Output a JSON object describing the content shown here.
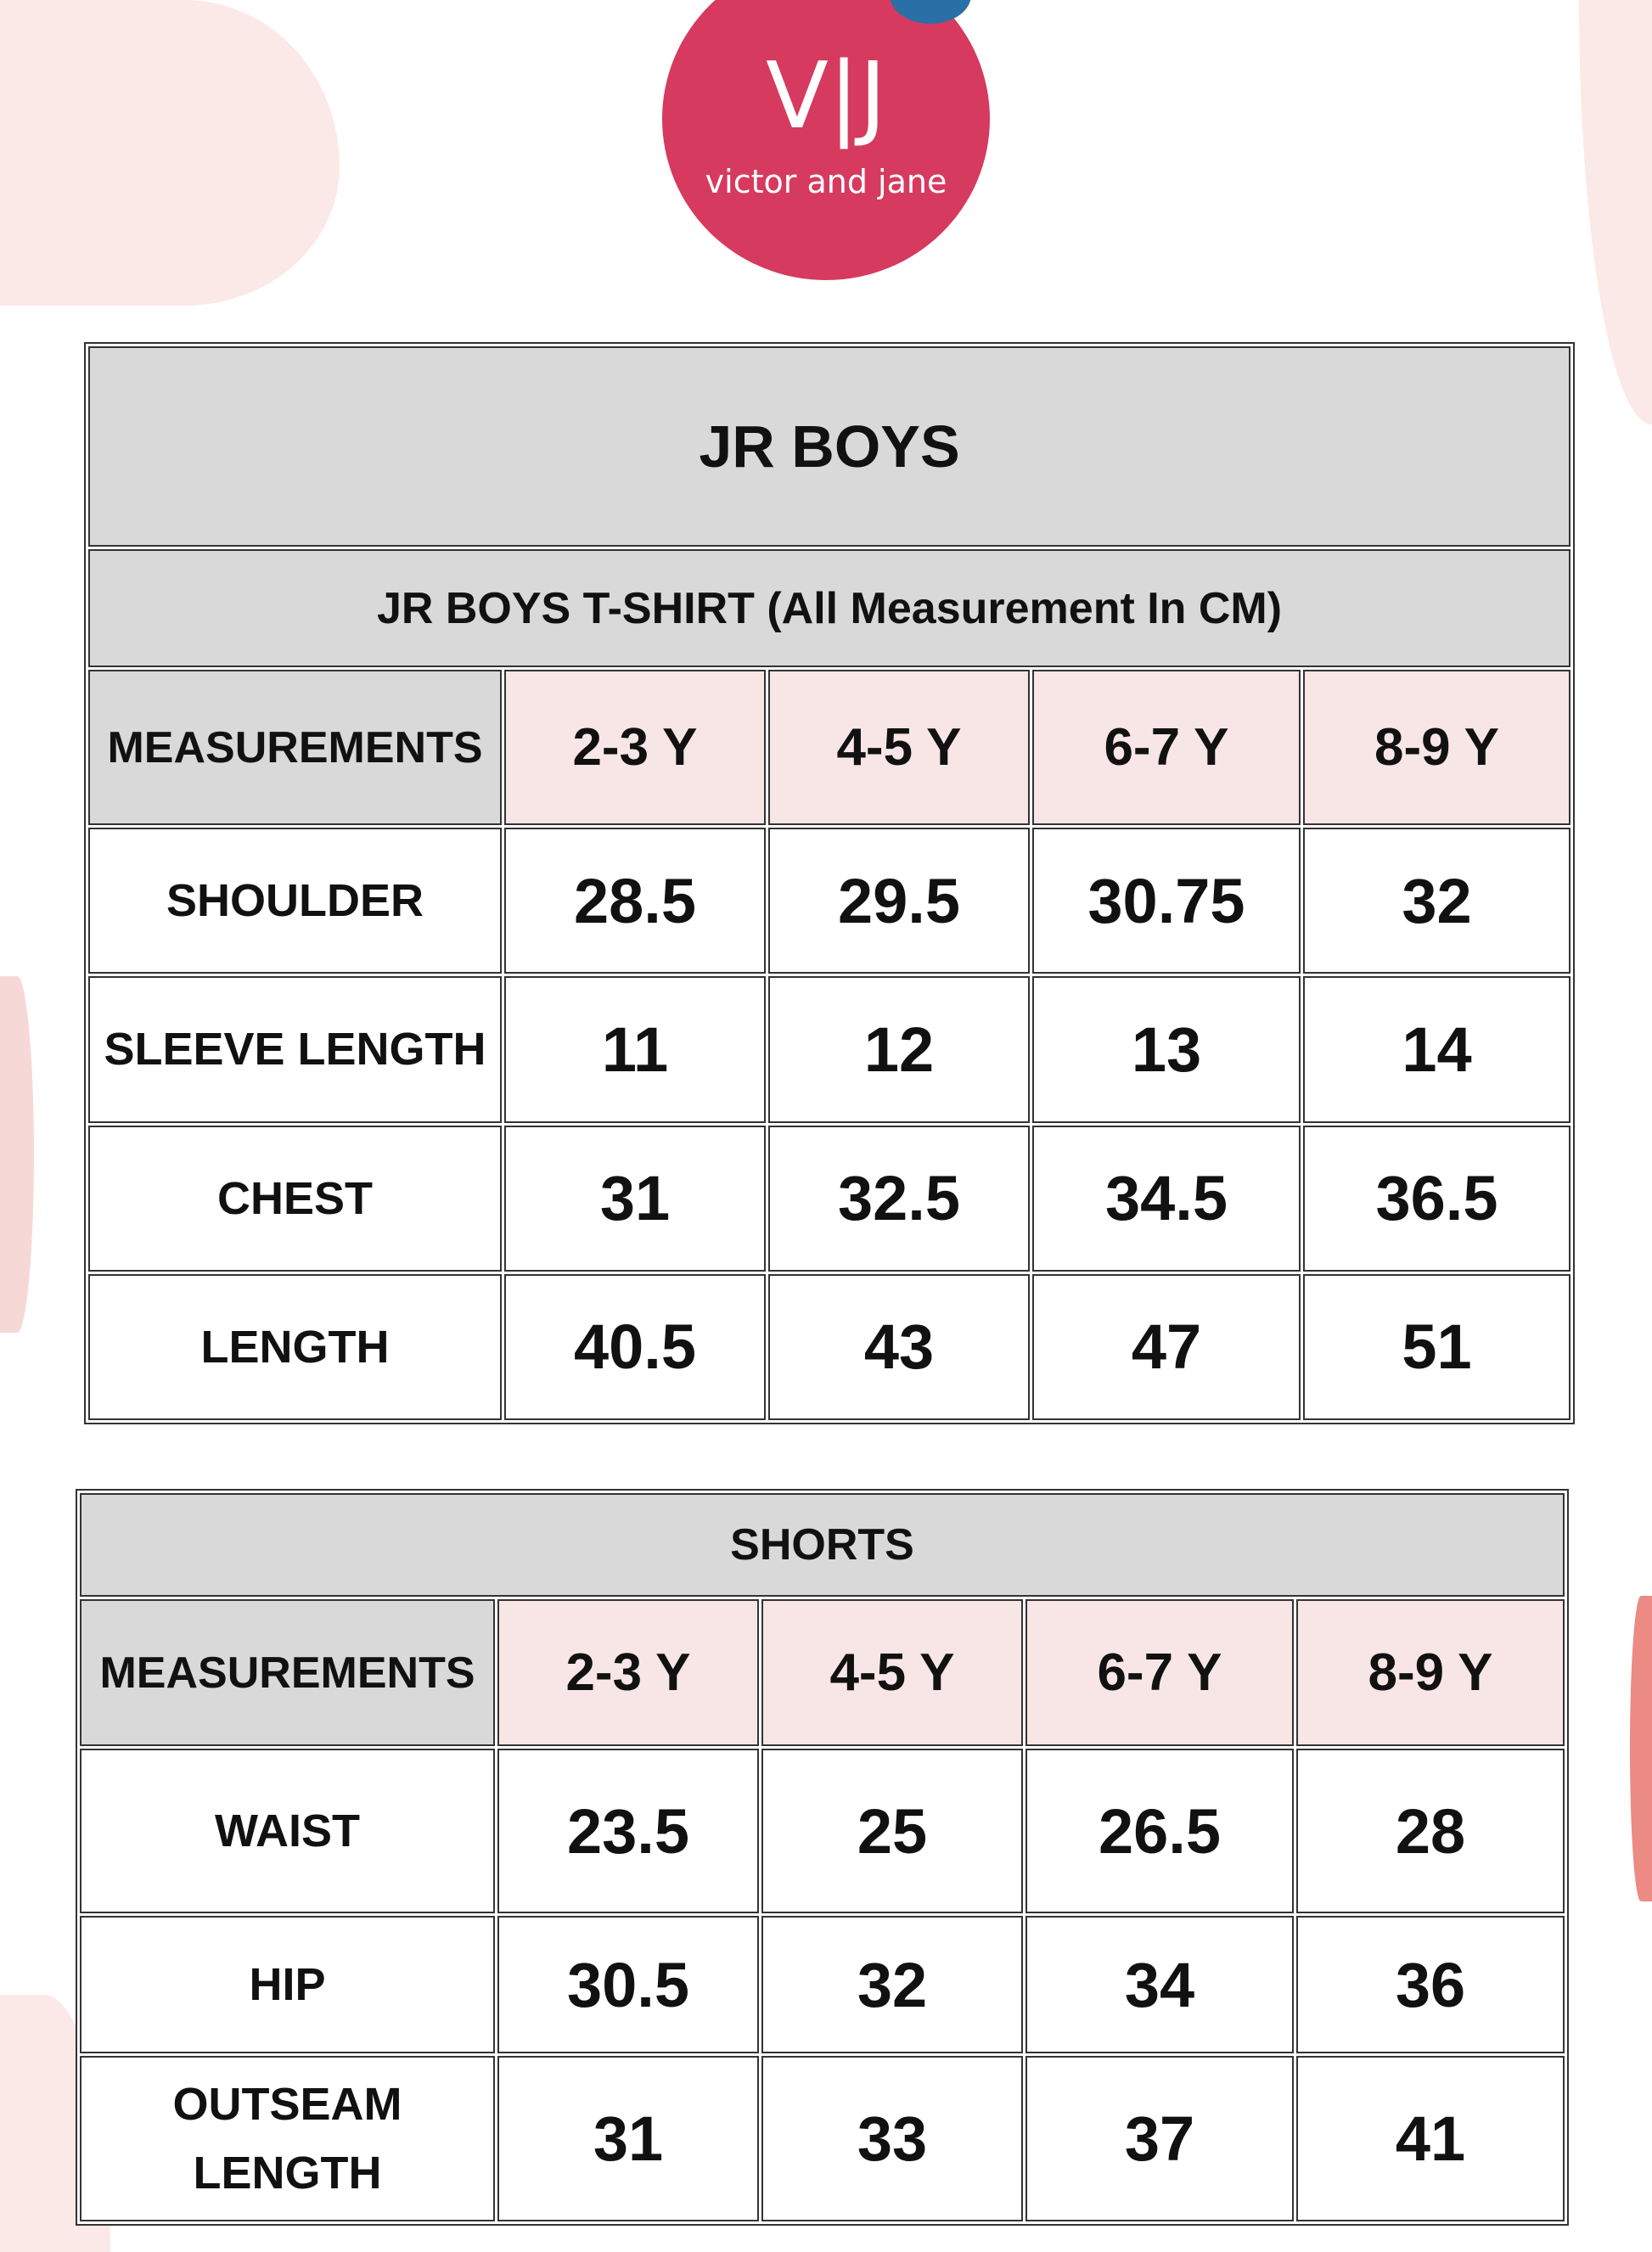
{
  "logo": {
    "mark": "V|J",
    "text": "victor and jane",
    "color": "#d63a5e"
  },
  "tshirt": {
    "title": "JR BOYS",
    "subtitle": "JR BOYS T-SHIRT (All Measurement In CM)",
    "header": [
      "MEASUREMENTS",
      "2-3 Y",
      "4-5 Y",
      "6-7 Y",
      "8-9 Y"
    ],
    "rows": [
      {
        "label": "SHOULDER",
        "values": [
          "28.5",
          "29.5",
          "30.75",
          "32"
        ]
      },
      {
        "label": "SLEEVE LENGTH",
        "values": [
          "11",
          "12",
          "13",
          "14"
        ]
      },
      {
        "label": "CHEST",
        "values": [
          "31",
          "32.5",
          "34.5",
          "36.5"
        ]
      },
      {
        "label": "LENGTH",
        "values": [
          "40.5",
          "43",
          "47",
          "51"
        ]
      }
    ]
  },
  "shorts": {
    "title": "SHORTS",
    "header": [
      "MEASUREMENTS",
      "2-3 Y",
      "4-5 Y",
      "6-7 Y",
      "8-9 Y"
    ],
    "rows": [
      {
        "label": "WAIST",
        "values": [
          "23.5",
          "25",
          "26.5",
          "28"
        ]
      },
      {
        "label": "HIP",
        "values": [
          "30.5",
          "32",
          "34",
          "36"
        ]
      },
      {
        "label": "OUTSEAM LENGTH",
        "values": [
          "31",
          "33",
          "37",
          "41"
        ]
      }
    ]
  }
}
